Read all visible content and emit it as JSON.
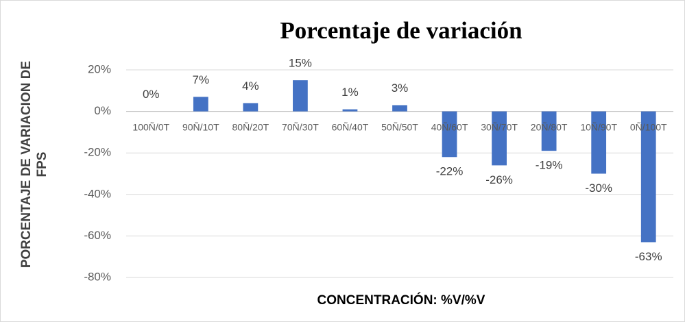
{
  "chart_data": {
    "type": "bar",
    "title": "Porcentaje de variación",
    "x_label": "CONCENTRACIÓN: %V/%V",
    "y_label": "PORCENTAJE DE VARIACION DE FPS",
    "categories": [
      "100Ñ/0T",
      "90Ñ/10T",
      "80Ñ/20T",
      "70Ñ/30T",
      "60Ñ/40T",
      "50Ñ/50T",
      "40Ñ/60T",
      "30Ñ/70T",
      "20Ñ/80T",
      "10Ñ/90T",
      "0Ñ/100T"
    ],
    "values": [
      0,
      7,
      4,
      15,
      1,
      3,
      -22,
      -26,
      -19,
      -30,
      -63
    ],
    "value_labels": [
      "0%",
      "7%",
      "4%",
      "15%",
      "1%",
      "3%",
      "-22%",
      "-26%",
      "-19%",
      "-30%",
      "-63%"
    ],
    "color": "#4472c4",
    "ylim": [
      -80,
      20
    ],
    "yticks": [
      {
        "value": -80,
        "label": "-80%"
      },
      {
        "value": -60,
        "label": "-60%"
      },
      {
        "value": -40,
        "label": "-40%"
      },
      {
        "value": -20,
        "label": "-20%"
      },
      {
        "value": 0,
        "label": "0%"
      },
      {
        "value": 20,
        "label": "20%"
      }
    ],
    "grid": true
  }
}
